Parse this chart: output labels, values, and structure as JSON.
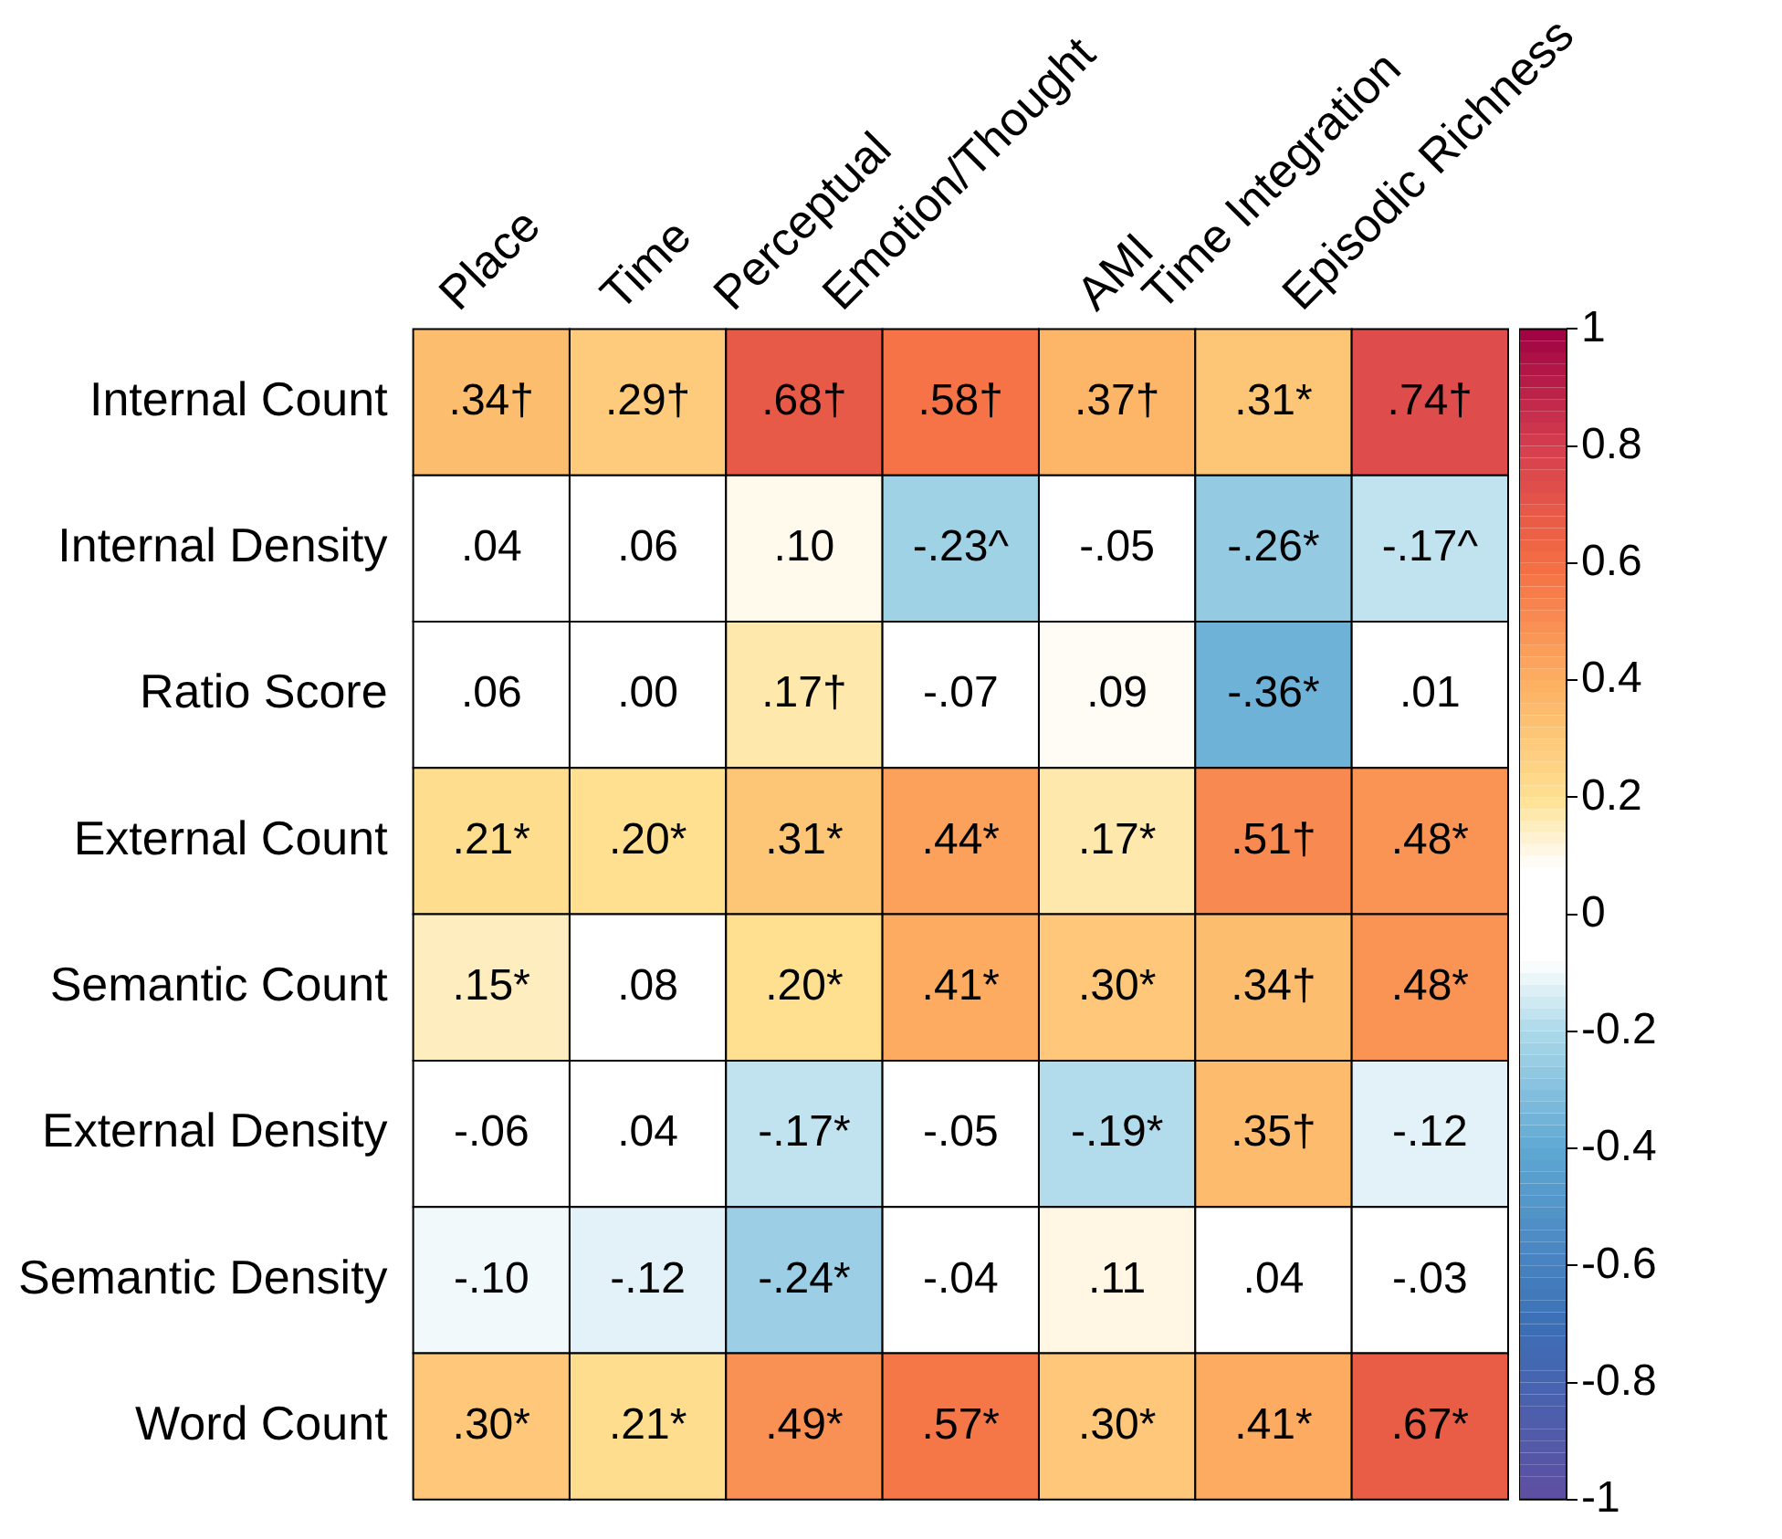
{
  "chart_data": {
    "type": "heatmap",
    "categories": [
      "Place",
      "Time",
      "Perceptual",
      "Emotion/Thought",
      "AMI",
      "Time Integration",
      "Episodic Richness"
    ],
    "y_categories": [
      "Internal Count",
      "Internal Density",
      "Ratio Score",
      "External Count",
      "Semantic Count",
      "External Density",
      "Semantic Density",
      "Word Count"
    ],
    "cells": [
      [
        0.34,
        0.29,
        0.68,
        0.58,
        0.37,
        0.31,
        0.74
      ],
      [
        0.04,
        0.06,
        0.1,
        -0.23,
        -0.05,
        -0.26,
        -0.17
      ],
      [
        0.06,
        0.0,
        0.17,
        -0.07,
        0.09,
        -0.36,
        0.01
      ],
      [
        0.21,
        0.2,
        0.31,
        0.44,
        0.17,
        0.51,
        0.48
      ],
      [
        0.15,
        0.08,
        0.2,
        0.41,
        0.3,
        0.34,
        0.48
      ],
      [
        -0.06,
        0.04,
        -0.17,
        -0.05,
        -0.19,
        0.35,
        -0.12
      ],
      [
        -0.1,
        -0.12,
        -0.24,
        -0.04,
        0.11,
        0.04,
        -0.03
      ],
      [
        0.3,
        0.21,
        0.49,
        0.57,
        0.3,
        0.41,
        0.67
      ]
    ],
    "cell_labels": [
      [
        ".34†",
        ".29†",
        ".68†",
        ".58†",
        ".37†",
        ".31*",
        ".74†"
      ],
      [
        ".04",
        ".06",
        ".10",
        "-.23^",
        "-.05",
        "-.26*",
        "-.17^"
      ],
      [
        ".06",
        ".00",
        ".17†",
        "-.07",
        ".09",
        "-.36*",
        ".01"
      ],
      [
        ".21*",
        ".20*",
        ".31*",
        ".44*",
        ".17*",
        ".51†",
        ".48*"
      ],
      [
        ".15*",
        ".08",
        ".20*",
        ".41*",
        ".30*",
        ".34†",
        ".48*"
      ],
      [
        "-.06",
        ".04",
        "-.17*",
        "-.05",
        "-.19*",
        ".35†",
        "-.12"
      ],
      [
        "-.10",
        "-.12",
        "-.24*",
        "-.04",
        ".11",
        ".04",
        "-.03"
      ],
      [
        ".30*",
        ".21*",
        ".49*",
        ".57*",
        ".30*",
        ".41*",
        ".67*"
      ]
    ],
    "clim": [
      -1,
      1
    ],
    "cticks": [
      -1,
      -0.8,
      -0.6,
      -0.4,
      -0.2,
      0,
      0.2,
      0.4,
      0.6,
      0.8,
      1
    ]
  }
}
